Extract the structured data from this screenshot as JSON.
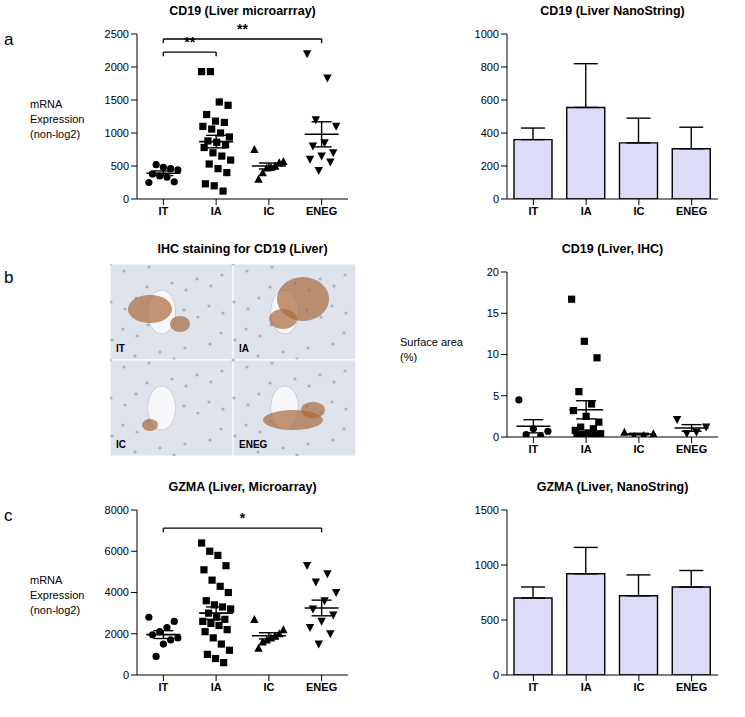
{
  "chart_data": [
    {
      "type": "scatter",
      "panel": "a",
      "title": "CD19 (Liver microarrray)",
      "ylabel": [
        "mRNA",
        "Expression",
        "(non-log2)"
      ],
      "ylim": [
        0,
        2500
      ],
      "yticks": [
        0,
        500,
        1000,
        1500,
        2000,
        2500
      ],
      "series": [
        {
          "name": "IT",
          "color": "#000000",
          "marker": "circle",
          "values": [
            250,
            260,
            330,
            350,
            380,
            440,
            460,
            480,
            520
          ],
          "mean": 390,
          "sem": 35
        },
        {
          "name": "IA",
          "color": "#000000",
          "marker": "square",
          "values": [
            1930,
            1930,
            1470,
            1420,
            1280,
            1180,
            1160,
            1100,
            1060,
            1000,
            940,
            880,
            860,
            820,
            780,
            700,
            650,
            590,
            530,
            460,
            400,
            230,
            200,
            120
          ],
          "mean": 870,
          "sem": 95
        },
        {
          "name": "IC",
          "color": "#000000",
          "marker": "triangle",
          "values": [
            750,
            570,
            550,
            500,
            480,
            470,
            400,
            300
          ],
          "mean": 500,
          "sem": 45
        },
        {
          "name": "ENEG",
          "color": "#000000",
          "marker": "triangle-down",
          "values": [
            2200,
            1830,
            1200,
            1100,
            850,
            800,
            700,
            650,
            600,
            560,
            430
          ],
          "mean": 980,
          "sem": 190
        }
      ],
      "annotations": [
        {
          "from": "IT",
          "to": "IA",
          "text": "**"
        },
        {
          "from": "IT",
          "to": "ENEG",
          "text": "**"
        }
      ]
    },
    {
      "type": "bar",
      "title": "CD19 (Liver NanoString)",
      "ylim": [
        0,
        1000
      ],
      "yticks": [
        0,
        200,
        400,
        600,
        800,
        1000
      ],
      "color": "#dcdcf8",
      "categories": [
        "IT",
        "IA",
        "IC",
        "ENEG"
      ],
      "values": [
        360,
        555,
        340,
        305
      ],
      "errors": [
        70,
        265,
        150,
        130
      ]
    },
    {
      "type": "image",
      "panel": "b",
      "title": "IHC staining for CD19 (Liver)",
      "labels": [
        "IT",
        "IA",
        "IC",
        "ENEG"
      ]
    },
    {
      "type": "scatter",
      "title": "CD19 (Liver, IHC)",
      "ylabel": [
        "Surface area",
        "(%)"
      ],
      "ylim": [
        0,
        20
      ],
      "yticks": [
        0,
        5,
        10,
        15,
        20
      ],
      "series": [
        {
          "name": "IT",
          "color": "#000000",
          "marker": "circle",
          "values": [
            4.5,
            1.0,
            0.7,
            0.3,
            0.1
          ],
          "mean": 1.3,
          "sem": 0.8
        },
        {
          "name": "IA",
          "color": "#000000",
          "marker": "square",
          "values": [
            16.7,
            11.6,
            9.6,
            5.5,
            4.0,
            3.2,
            2.5,
            1.8,
            1.2,
            1.0,
            0.8,
            0.5,
            0.4,
            0.3,
            0.2,
            0.1,
            0.1
          ],
          "mean": 3.3,
          "sem": 1.1
        },
        {
          "name": "IC",
          "color": "#000000",
          "marker": "triangle",
          "values": [
            0.6,
            0.4,
            0.2,
            0.1
          ],
          "mean": 0.35,
          "sem": 0.1
        },
        {
          "name": "ENEG",
          "color": "#000000",
          "marker": "triangle-down",
          "values": [
            2.1,
            1.2,
            0.6,
            0.4
          ],
          "mean": 1.1,
          "sem": 0.4
        }
      ],
      "annotations": []
    },
    {
      "type": "scatter",
      "panel": "c",
      "title": "GZMA (Liver, Microarray)",
      "ylabel": [
        "mRNA",
        "Expression",
        "(non-log2)"
      ],
      "ylim": [
        0,
        8000
      ],
      "yticks": [
        0,
        2000,
        4000,
        6000,
        8000
      ],
      "series": [
        {
          "name": "IT",
          "color": "#000000",
          "marker": "circle",
          "values": [
            2800,
            2600,
            2300,
            2100,
            1950,
            1800,
            1700,
            1500,
            900
          ],
          "mean": 1960,
          "sem": 190
        },
        {
          "name": "IA",
          "color": "#000000",
          "marker": "square",
          "values": [
            6400,
            6000,
            5800,
            5300,
            5100,
            4600,
            4300,
            4000,
            3600,
            3400,
            3300,
            3200,
            3000,
            2800,
            2700,
            2600,
            2500,
            2400,
            2200,
            2100,
            1800,
            1500,
            1200,
            1000,
            800,
            600
          ],
          "mean": 3000,
          "sem": 300
        },
        {
          "name": "IC",
          "color": "#000000",
          "marker": "triangle",
          "values": [
            2700,
            2200,
            2000,
            1900,
            1800,
            1700,
            1600,
            1300
          ],
          "mean": 1900,
          "sem": 150
        },
        {
          "name": "ENEG",
          "color": "#000000",
          "marker": "triangle-down",
          "values": [
            5300,
            4900,
            4500,
            4000,
            3600,
            3200,
            2900,
            2600,
            2300,
            2000,
            1500
          ],
          "mean": 3250,
          "sem": 380
        }
      ],
      "annotations": [
        {
          "from": "IT",
          "to": "ENEG",
          "text": "*"
        }
      ]
    },
    {
      "type": "bar",
      "title": "GZMA (Liver, NanoString)",
      "ylim": [
        0,
        1500
      ],
      "yticks": [
        0,
        500,
        1000,
        1500
      ],
      "color": "#dcdcf8",
      "categories": [
        "IT",
        "IA",
        "IC",
        "ENEG"
      ],
      "values": [
        700,
        920,
        720,
        800
      ],
      "errors": [
        100,
        240,
        190,
        150
      ]
    }
  ]
}
